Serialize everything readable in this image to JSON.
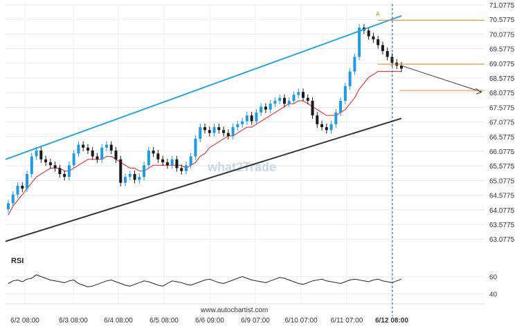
{
  "chart_data": {
    "type": "candlestick",
    "y_ticks": [
      "71.0775",
      "70.5775",
      "70.0775",
      "69.5775",
      "69.0775",
      "68.5775",
      "68.0775",
      "67.5775",
      "67.0775",
      "66.5775",
      "66.0775",
      "65.5775",
      "65.0775",
      "64.5775",
      "64.0775",
      "63.5775",
      "63.0775"
    ],
    "ylim": [
      62.8,
      71.1
    ],
    "x_ticks": [
      "6/2 08:00",
      "6/3 08:00",
      "6/4 08:00",
      "6/5 08:00",
      "6/6 09:00",
      "6/9 07:00",
      "6/10 07:00",
      "6/11 07:00",
      "6/12 08:00"
    ],
    "x_ticks_bold": [
      false,
      false,
      false,
      false,
      false,
      false,
      false,
      false,
      true
    ],
    "rsi": {
      "label": "RSI",
      "ticks": [
        "60",
        "40"
      ],
      "values": [
        52,
        55,
        56,
        54,
        57,
        58,
        62,
        60,
        58,
        56,
        55,
        54,
        53,
        55,
        56,
        52,
        50,
        48,
        49,
        51,
        53,
        55,
        56,
        54,
        52,
        50,
        49,
        51,
        53,
        55,
        54,
        52,
        50,
        49,
        52,
        55,
        54,
        53,
        51,
        50,
        52,
        54,
        56,
        57,
        55,
        53,
        52,
        54,
        56,
        58,
        60,
        58,
        56,
        55,
        54,
        53,
        55,
        57,
        59,
        58,
        56,
        54,
        52,
        51,
        53,
        55,
        56,
        57,
        55,
        54,
        53,
        52,
        54,
        56,
        57,
        56,
        55,
        54,
        56,
        57,
        55,
        54,
        53,
        55,
        57
      ]
    },
    "series": [
      {
        "type": "candles",
        "closes": [
          64.3,
          64.6,
          64.9,
          64.8,
          65.3,
          65.9,
          66.1,
          65.8,
          65.7,
          65.6,
          65.5,
          65.3,
          65.2,
          65.6,
          66.0,
          66.3,
          66.2,
          66.1,
          65.9,
          65.8,
          66.2,
          66.3,
          66.1,
          65.8,
          65.0,
          65.2,
          65.3,
          65.1,
          65.2,
          65.6,
          66.1,
          66.0,
          65.8,
          65.7,
          65.6,
          65.8,
          65.5,
          65.4,
          65.6,
          65.9,
          66.5,
          66.9,
          66.8,
          66.7,
          66.9,
          66.8,
          66.7,
          66.6,
          66.9,
          67.0,
          67.1,
          67.3,
          67.1,
          67.4,
          67.6,
          67.5,
          67.7,
          67.8,
          67.9,
          67.7,
          67.8,
          68.0,
          68.1,
          67.9,
          67.8,
          67.3,
          67.0,
          66.9,
          66.8,
          67.0,
          67.4,
          67.8,
          68.3,
          68.8,
          69.3,
          70.3,
          70.2,
          70.0,
          69.9,
          69.7,
          69.5,
          69.3,
          69.1,
          69.0,
          68.9
        ]
      },
      {
        "type": "moving-average",
        "values": [
          63.9,
          64.2,
          64.4,
          64.6,
          64.8,
          65.0,
          65.2,
          65.3,
          65.4,
          65.5,
          65.5,
          65.5,
          65.4,
          65.4,
          65.5,
          65.6,
          65.7,
          65.8,
          65.8,
          65.8,
          65.8,
          65.9,
          65.9,
          65.8,
          65.7,
          65.6,
          65.5,
          65.5,
          65.4,
          65.4,
          65.5,
          65.6,
          65.6,
          65.6,
          65.6,
          65.6,
          65.6,
          65.6,
          65.5,
          65.6,
          65.7,
          65.9,
          66.0,
          66.2,
          66.3,
          66.4,
          66.5,
          66.6,
          66.6,
          66.7,
          66.8,
          66.9,
          66.9,
          67.0,
          67.1,
          67.2,
          67.3,
          67.4,
          67.5,
          67.6,
          67.7,
          67.7,
          67.8,
          67.8,
          67.7,
          67.6,
          67.5,
          67.4,
          67.3,
          67.3,
          67.3,
          67.4,
          67.5,
          67.7,
          67.9,
          68.2,
          68.4,
          68.6,
          68.7,
          68.8,
          68.8,
          68.8,
          68.8,
          68.8,
          68.8
        ]
      }
    ],
    "trendlines": [
      {
        "name": "upper-channel",
        "color": "#29a3de",
        "from": [
          0,
          65.8
        ],
        "to": [
          84,
          70.7
        ]
      },
      {
        "name": "lower-channel",
        "color": "#333333",
        "from": [
          0,
          63.0
        ],
        "to": [
          84,
          67.2
        ]
      },
      {
        "name": "projection",
        "color": "#333333",
        "from": [
          84,
          69.0
        ],
        "to": [
          100,
          68.1
        ]
      }
    ],
    "horizontal_levels": [
      {
        "value": 70.55,
        "color": "#e58a2b",
        "label": "A"
      },
      {
        "value": 69.05,
        "color": "#e58a2b"
      },
      {
        "value": 68.15,
        "color": "#e58a2b"
      }
    ],
    "colors": {
      "up": "#1e9be6",
      "down": "#1a1a1a",
      "ma": "#e83b3b",
      "level": "#e58a2b",
      "current_time": "#1a5f8a"
    },
    "watermark": "what2Trade",
    "source": "www.autochartist.com"
  }
}
